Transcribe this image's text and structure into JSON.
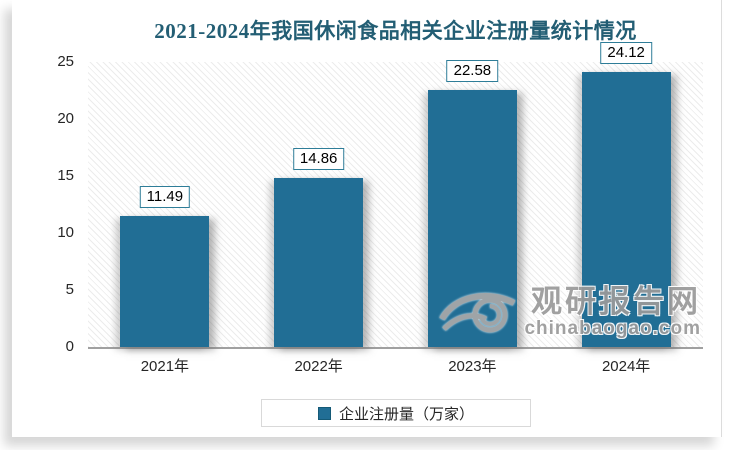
{
  "title": "2021-2024年我国休闲食品相关企业注册量统计情况",
  "chart_data": {
    "type": "bar",
    "title": "2021-2024年我国休闲食品相关企业注册量统计情况",
    "categories": [
      "2021年",
      "2022年",
      "2023年",
      "2024年"
    ],
    "values": [
      11.49,
      14.86,
      22.58,
      24.12
    ],
    "data_labels": [
      "11.49",
      "14.86",
      "22.58",
      "24.12"
    ],
    "series_name": "企业注册量（万家）",
    "xlabel": "",
    "ylabel": "",
    "ylim": [
      0,
      25
    ],
    "yticks": [
      0,
      5,
      10,
      15,
      20,
      25
    ],
    "grid": false,
    "plot_background": "diagonal-hatch",
    "legend_position": "bottom"
  },
  "legend": {
    "label": "企业注册量（万家）"
  },
  "watermark": {
    "name": "观研报告网",
    "domain": "chinabaogao.com"
  },
  "colors": {
    "bar": "#216E95",
    "title": "#235E74",
    "axis_line": "#A0A0A0",
    "tick_text": "#262626",
    "label_box_border": "#2E7D98",
    "legend_border": "#D9D9D9",
    "watermark_gray": "#9A9A9A"
  }
}
